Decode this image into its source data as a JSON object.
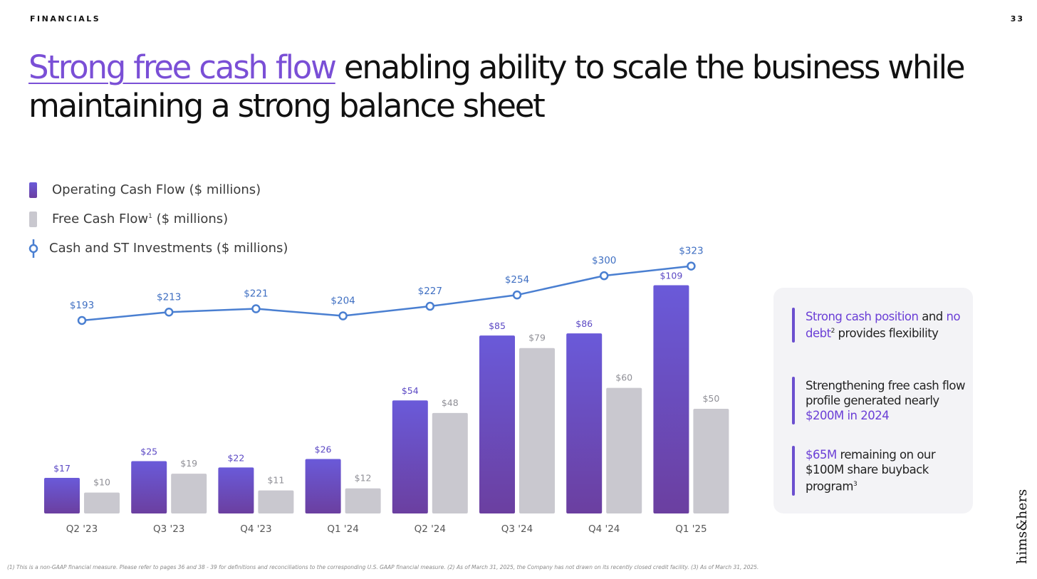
{
  "page": {
    "section_label": "FINANCIALS",
    "page_number": "33",
    "headline_accent": "Strong free cash flow",
    "headline_rest": " enabling ability to scale the business while maintaining a strong balance sheet",
    "brand_logo": "hims&hers",
    "footnote": "(1) This is a non-GAAP financial measure. Please refer to pages 36 and 38 - 39 for definitions and reconciliations to the corresponding U.S. GAAP financial measure. (2) As of March 31, 2025, the Company has not drawn on its recently closed credit facility. (3) As of March 31, 2025."
  },
  "legend": {
    "operating": "Operating Cash Flow ($ millions)",
    "fcf": "Free Cash Flow",
    "fcf_sup": "1",
    "fcf_suffix": " ($ millions)",
    "cash": "Cash and ST Investments ($ millions)"
  },
  "callouts": {
    "item1": {
      "hl1": "Strong cash position",
      "t1": " and ",
      "hl2": "no debt",
      "sup": "2",
      "t2": " provides flexibility"
    },
    "item2": {
      "t1": "Strengthening free cash flow profile generated nearly ",
      "hl": "$200M in 2024"
    },
    "item3": {
      "hl": "$65M",
      "t1": " remaining on our $100M share buyback program",
      "sup": "3"
    }
  },
  "colors": {
    "operating_top": "#6a5ad9",
    "operating_bottom": "#6b3fa0",
    "fcf": "#c9c8cf",
    "line": "#4a7fd1",
    "accent": "#7a4fd6"
  },
  "chart_data": {
    "type": "bar",
    "categories": [
      "Q2 '23",
      "Q3 '23",
      "Q4 '23",
      "Q1 '24",
      "Q2 '24",
      "Q3 '24",
      "Q4 '24",
      "Q1 '25"
    ],
    "series": [
      {
        "name": "Operating Cash Flow ($ millions)",
        "type": "bar",
        "values": [
          17,
          25,
          22,
          26,
          54,
          85,
          86,
          109
        ],
        "labels": [
          "$17",
          "$25",
          "$22",
          "$26",
          "$54",
          "$85",
          "$86",
          "$109"
        ]
      },
      {
        "name": "Free Cash Flow ($ millions)",
        "type": "bar",
        "values": [
          10,
          19,
          11,
          12,
          48,
          79,
          60,
          50
        ],
        "labels": [
          "$10",
          "$19",
          "$11",
          "$12",
          "$48",
          "$79",
          "$60",
          "$50"
        ]
      },
      {
        "name": "Cash and ST Investments ($ millions)",
        "type": "line",
        "values": [
          193,
          213,
          221,
          204,
          227,
          254,
          300,
          323
        ],
        "labels": [
          "$193",
          "$213",
          "$221",
          "$204",
          "$227",
          "$254",
          "$300",
          "$323"
        ]
      }
    ],
    "title": "",
    "xlabel": "",
    "ylabel": "",
    "grid": false,
    "legend": "top-left"
  }
}
